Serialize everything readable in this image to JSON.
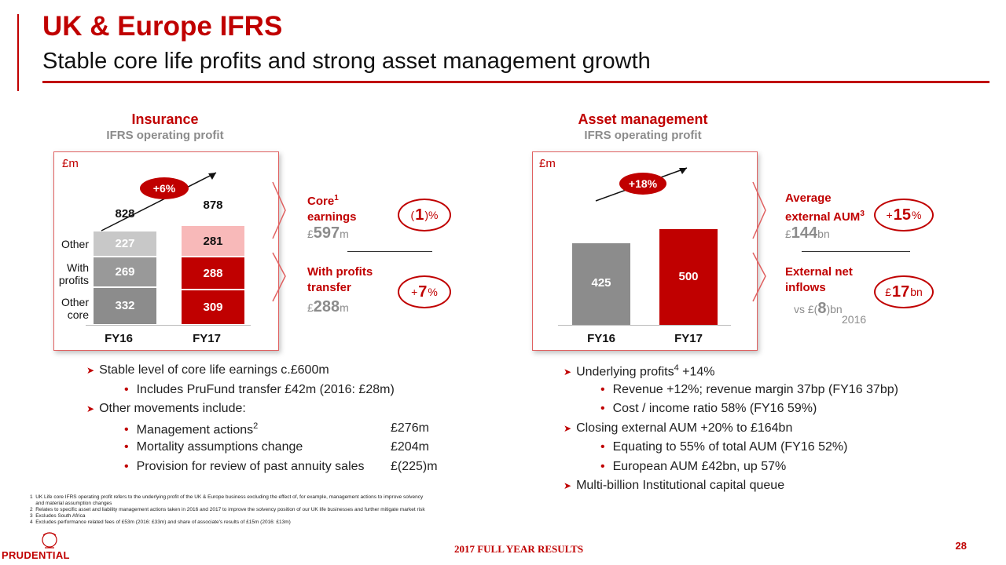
{
  "header": {
    "title": "UK & Europe IFRS",
    "subtitle": "Stable core life profits and strong asset management growth"
  },
  "insurance": {
    "heading": "Insurance",
    "subheading": "IFRS operating profit",
    "unit": "£m",
    "growth_badge": "+6%",
    "row_labels": [
      "Other",
      "With profits",
      "Other core"
    ],
    "kpis": [
      {
        "label_lines": [
          "Core",
          "earnings"
        ],
        "sup": "1",
        "value_prefix": "£",
        "value_num": "597",
        "value_suffix": "m",
        "change_pre": "(",
        "change_num": "1",
        "change_post": ")%"
      },
      {
        "label_lines": [
          "With profits",
          "transfer"
        ],
        "sup": "",
        "value_prefix": "£",
        "value_num": "288",
        "value_suffix": "m",
        "change_pre": "+",
        "change_num": "7",
        "change_post": "%"
      }
    ]
  },
  "asset_management": {
    "heading": "Asset management",
    "subheading": "IFRS operating profit",
    "unit": "£m",
    "growth_badge": "+18%",
    "kpis": [
      {
        "label_lines": [
          "Average",
          "external AUM"
        ],
        "sup": "3",
        "value_prefix": "£",
        "value_num": "144",
        "value_suffix": "bn",
        "change_pre": "+",
        "change_num": "15",
        "change_post": "%"
      },
      {
        "label_lines": [
          "External net",
          "inflows"
        ],
        "sup": "",
        "value_prefix": "",
        "value_num": "",
        "value_suffix": "",
        "change_pre": "£",
        "change_num": "17",
        "change_post": "bn",
        "vs_pre": "vs £(",
        "vs_num": "8",
        "vs_post": ")bn",
        "vs_year": "2016"
      }
    ]
  },
  "chart_data": [
    {
      "type": "bar",
      "stacked": true,
      "categories": [
        "FY16",
        "FY17"
      ],
      "series": [
        {
          "name": "Other core",
          "values": [
            332,
            309
          ]
        },
        {
          "name": "With profits",
          "values": [
            269,
            288
          ]
        },
        {
          "name": "Other",
          "values": [
            227,
            281
          ]
        }
      ],
      "totals": [
        828,
        878
      ],
      "colors": {
        "FY16": [
          "#8c8c8c",
          "#999999",
          "#c8c8c8"
        ],
        "FY17": [
          "#c00000",
          "#c00000",
          "#f8b9b9"
        ]
      },
      "ylabel": "£m"
    },
    {
      "type": "bar",
      "categories": [
        "FY16",
        "FY17"
      ],
      "values": [
        425,
        500
      ],
      "colors": [
        "#8c8c8c",
        "#c00000"
      ],
      "ylabel": "£m"
    }
  ],
  "left_bullets": [
    {
      "level": 1,
      "text": "Stable level of core life earnings c.£600m"
    },
    {
      "level": 2,
      "text": "Includes PruFund transfer £42m (2016: £28m)"
    },
    {
      "level": 1,
      "text": "Other movements include:"
    },
    {
      "level": 2,
      "text": "Management actions",
      "sup": "2",
      "amount": "£276m"
    },
    {
      "level": 2,
      "text": "Mortality assumptions change",
      "amount": "£204m"
    },
    {
      "level": 2,
      "text": "Provision for review of past annuity sales",
      "amount": "£(225)m"
    }
  ],
  "right_bullets": [
    {
      "level": 1,
      "text": "Underlying profits",
      "sup": "4",
      "tail": " +14%"
    },
    {
      "level": 2,
      "text": "Revenue +12%; revenue margin 37bp (FY16 37bp)"
    },
    {
      "level": 2,
      "text": "Cost / income ratio 58% (FY16 59%)"
    },
    {
      "level": 1,
      "text": "Closing external AUM +20% to £164bn"
    },
    {
      "level": 2,
      "text": "Equating to 55% of total AUM (FY16 52%)"
    },
    {
      "level": 2,
      "text": "European AUM £42bn, up 57%"
    },
    {
      "level": 1,
      "text": "Multi-billion Institutional capital queue"
    }
  ],
  "footnotes": [
    "1  UK Life core IFRS operating profit refers to the underlying profit of the UK & Europe business excluding the effect of, for example, management actions to improve solvency",
    "    and material assumption changes",
    "2  Relates to specific asset and liability management actions taken in 2016 and 2017 to improve the solvency position of our UK life businesses and further mitigate market risk",
    "3  Excludes South Africa",
    "4  Excludes performance related fees of £53m (2016: £33m) and share of associate's results of £15m (2016: £13m)"
  ],
  "footer": {
    "brand": "PRUDENTIAL",
    "report": "2017 FULL YEAR RESULTS",
    "page": "28"
  }
}
